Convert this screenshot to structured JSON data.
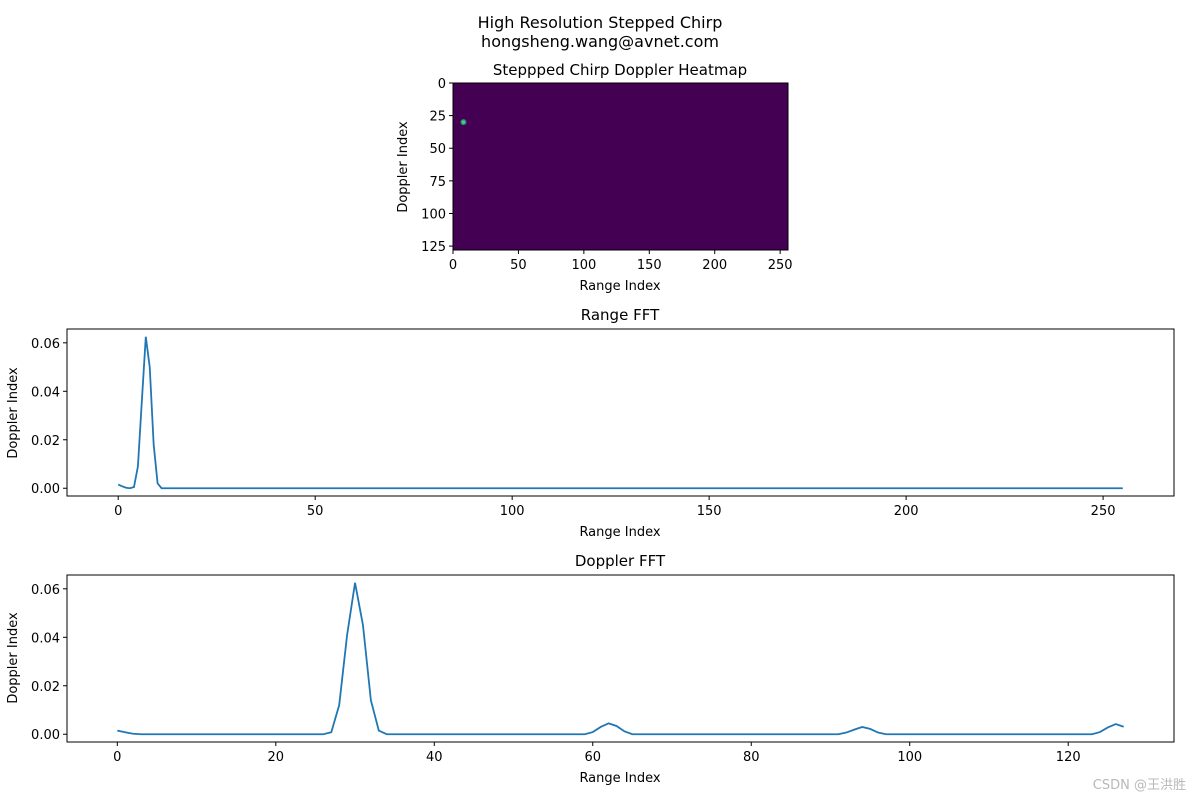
{
  "figure": {
    "suptitle_line1": "High Resolution Stepped Chirp",
    "suptitle_line2": "hongsheng.wang@avnet.com",
    "watermark": "CSDN @王洪胜"
  },
  "colors": {
    "line": "#1f77b4",
    "heatmap_background": "#440154",
    "heatmap_peak": "#5ec962",
    "heatmap_peak_ring": "#21918c"
  },
  "chart_data": [
    {
      "type": "heatmap",
      "title": "Steppped Chirp Doppler Heatmap",
      "xlabel": "Range Index",
      "ylabel": "Doppler Index",
      "xlim": [
        0,
        256
      ],
      "ylim": [
        128,
        0
      ],
      "xticks": [
        0,
        50,
        100,
        150,
        200,
        250
      ],
      "yticks": [
        0,
        25,
        50,
        75,
        100,
        125
      ],
      "colormap": "viridis",
      "background_value": 0,
      "peak": {
        "x": 8,
        "y": 30,
        "value": 0.062
      }
    },
    {
      "type": "line",
      "title": "Range FFT",
      "xlabel": "Range Index",
      "ylabel": "Doppler Index",
      "xlim": [
        -13,
        268
      ],
      "ylim": [
        -0.0032,
        0.0657
      ],
      "xticks": [
        0,
        50,
        100,
        150,
        200,
        250
      ],
      "yticks": [
        0.0,
        0.02,
        0.04,
        0.06
      ],
      "ytick_labels": [
        "0.00",
        "0.02",
        "0.04",
        "0.06"
      ],
      "series": [
        {
          "x_start": 0,
          "x_end": 255,
          "values": [
            0.0015,
            0.0008,
            0.0002,
            0.0,
            0.0005,
            0.009,
            0.036,
            0.0625,
            0.05,
            0.018,
            0.002,
            0.0
          ],
          "tail_value": 0.0
        }
      ]
    },
    {
      "type": "line",
      "title": "Doppler FFT",
      "xlabel": "Range Index",
      "ylabel": "Doppler Index",
      "xlim": [
        -6.35,
        133.35
      ],
      "ylim": [
        -0.0032,
        0.0657
      ],
      "xticks": [
        0,
        20,
        40,
        60,
        80,
        100,
        120
      ],
      "yticks": [
        0.0,
        0.02,
        0.04,
        0.06
      ],
      "ytick_labels": [
        "0.00",
        "0.02",
        "0.04",
        "0.06"
      ],
      "series": [
        {
          "x_start": 0,
          "x_end": 127,
          "points": [
            [
              0,
              0.0015
            ],
            [
              1,
              0.0008
            ],
            [
              2,
              0.0002
            ],
            [
              3,
              0.0
            ],
            [
              26,
              0.0
            ],
            [
              27,
              0.0008
            ],
            [
              28,
              0.012
            ],
            [
              29,
              0.041
            ],
            [
              30,
              0.0625
            ],
            [
              31,
              0.045
            ],
            [
              32,
              0.014
            ],
            [
              33,
              0.0015
            ],
            [
              34,
              0.0
            ],
            [
              59,
              0.0
            ],
            [
              60,
              0.0009
            ],
            [
              61,
              0.003
            ],
            [
              62,
              0.0045
            ],
            [
              63,
              0.0034
            ],
            [
              64,
              0.0012
            ],
            [
              65,
              0.0
            ],
            [
              91,
              0.0
            ],
            [
              92,
              0.0007
            ],
            [
              93,
              0.0019
            ],
            [
              94,
              0.003
            ],
            [
              95,
              0.0022
            ],
            [
              96,
              0.0007
            ],
            [
              97,
              0.0
            ],
            [
              123,
              0.0
            ],
            [
              124,
              0.0009
            ],
            [
              125,
              0.0028
            ],
            [
              126,
              0.0042
            ],
            [
              127,
              0.0031
            ]
          ]
        }
      ]
    }
  ]
}
